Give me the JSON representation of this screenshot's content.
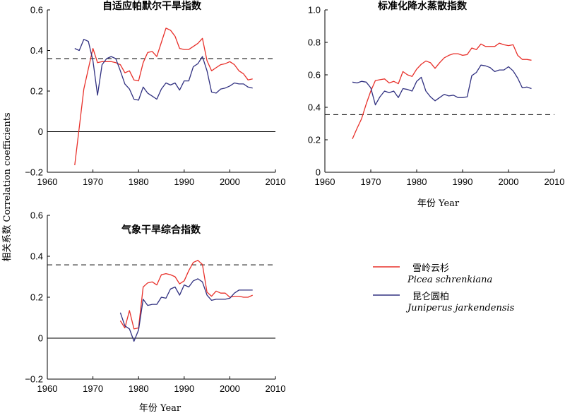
{
  "ylabel": "相关系数 Correlation coefficients",
  "legend": {
    "items": [
      {
        "name_cn": "雪岭云杉",
        "name_latin": "Picea schrenkiana",
        "color": "#e8302a"
      },
      {
        "name_cn": "昆仑圆柏",
        "name_latin": "Juniperus jarkendensis",
        "color": "#303080"
      }
    ]
  },
  "chart_data": [
    {
      "type": "line",
      "title": "自适应帕默尔干旱指数",
      "xlabel": "",
      "xlim": [
        1960,
        2010
      ],
      "ylim": [
        -0.2,
        0.6
      ],
      "xticks": [
        1960,
        1970,
        1980,
        1990,
        2000,
        2010
      ],
      "yticks": [
        -0.2,
        0,
        0.2,
        0.4,
        0.6
      ],
      "ytick_labels": [
        "−0.2",
        "0",
        "0.2",
        "0.4",
        "0.6"
      ],
      "threshold": 0.36,
      "zero_line": true,
      "series": [
        {
          "name": "雪岭云杉",
          "color": "#e8302a",
          "x": [
            1966,
            1967,
            1968,
            1969,
            1970,
            1971,
            1972,
            1973,
            1974,
            1975,
            1976,
            1977,
            1978,
            1979,
            1980,
            1981,
            1982,
            1983,
            1984,
            1985,
            1986,
            1987,
            1988,
            1989,
            1990,
            1991,
            1992,
            1993,
            1994,
            1995,
            1996,
            1997,
            1998,
            1999,
            2000,
            2001,
            2002,
            2003,
            2004,
            2005
          ],
          "y": [
            -0.165,
            0.02,
            0.21,
            0.31,
            0.41,
            0.34,
            0.345,
            0.345,
            0.345,
            0.34,
            0.33,
            0.29,
            0.3,
            0.255,
            0.25,
            0.34,
            0.39,
            0.395,
            0.37,
            0.44,
            0.51,
            0.5,
            0.47,
            0.41,
            0.405,
            0.405,
            0.42,
            0.435,
            0.46,
            0.35,
            0.3,
            0.315,
            0.33,
            0.335,
            0.345,
            0.33,
            0.3,
            0.285,
            0.255,
            0.26
          ]
        },
        {
          "name": "昆仑圆柏",
          "color": "#303080",
          "x": [
            1966,
            1967,
            1968,
            1969,
            1970,
            1971,
            1972,
            1973,
            1974,
            1975,
            1976,
            1977,
            1978,
            1979,
            1980,
            1981,
            1982,
            1983,
            1984,
            1985,
            1986,
            1987,
            1988,
            1989,
            1990,
            1991,
            1992,
            1993,
            1994,
            1995,
            1996,
            1997,
            1998,
            1999,
            2000,
            2001,
            2002,
            2003,
            2004,
            2005
          ],
          "y": [
            0.41,
            0.4,
            0.455,
            0.445,
            0.35,
            0.18,
            0.33,
            0.36,
            0.37,
            0.36,
            0.3,
            0.235,
            0.21,
            0.16,
            0.155,
            0.22,
            0.19,
            0.175,
            0.16,
            0.21,
            0.24,
            0.23,
            0.24,
            0.205,
            0.25,
            0.25,
            0.32,
            0.335,
            0.37,
            0.3,
            0.195,
            0.19,
            0.21,
            0.215,
            0.225,
            0.24,
            0.235,
            0.235,
            0.22,
            0.215
          ]
        }
      ]
    },
    {
      "type": "line",
      "title": "标准化降水蒸散指数",
      "xlabel": "年份 Year",
      "xlim": [
        1960,
        2010
      ],
      "ylim": [
        0,
        1.0
      ],
      "xticks": [
        1960,
        1970,
        1980,
        1990,
        2000,
        2010
      ],
      "yticks": [
        0,
        0.2,
        0.4,
        0.6,
        0.8,
        1.0
      ],
      "ytick_labels": [
        "0",
        "0.2",
        "0.4",
        "0.6",
        "0.8",
        "1.0"
      ],
      "threshold": 0.355,
      "zero_line": false,
      "series": [
        {
          "name": "雪岭云杉",
          "color": "#e8302a",
          "x": [
            1966,
            1967,
            1968,
            1969,
            1970,
            1971,
            1972,
            1973,
            1974,
            1975,
            1976,
            1977,
            1978,
            1979,
            1980,
            1981,
            1982,
            1983,
            1984,
            1985,
            1986,
            1987,
            1988,
            1989,
            1990,
            1991,
            1992,
            1993,
            1994,
            1995,
            1996,
            1997,
            1998,
            1999,
            2000,
            2001,
            2002,
            2003,
            2004,
            2005
          ],
          "y": [
            0.205,
            0.27,
            0.33,
            0.42,
            0.5,
            0.565,
            0.57,
            0.575,
            0.55,
            0.56,
            0.545,
            0.62,
            0.6,
            0.59,
            0.635,
            0.665,
            0.685,
            0.675,
            0.64,
            0.675,
            0.705,
            0.72,
            0.73,
            0.73,
            0.72,
            0.725,
            0.765,
            0.755,
            0.79,
            0.775,
            0.775,
            0.775,
            0.795,
            0.785,
            0.78,
            0.785,
            0.72,
            0.695,
            0.695,
            0.69
          ]
        },
        {
          "name": "昆仑圆柏",
          "color": "#303080",
          "x": [
            1966,
            1967,
            1968,
            1969,
            1970,
            1971,
            1972,
            1973,
            1974,
            1975,
            1976,
            1977,
            1978,
            1979,
            1980,
            1981,
            1982,
            1983,
            1984,
            1985,
            1986,
            1987,
            1988,
            1989,
            1990,
            1991,
            1992,
            1993,
            1994,
            1995,
            1996,
            1997,
            1998,
            1999,
            2000,
            2001,
            2002,
            2003,
            2004,
            2005
          ],
          "y": [
            0.555,
            0.55,
            0.56,
            0.555,
            0.52,
            0.415,
            0.465,
            0.5,
            0.49,
            0.5,
            0.46,
            0.515,
            0.51,
            0.5,
            0.56,
            0.585,
            0.5,
            0.465,
            0.44,
            0.46,
            0.48,
            0.47,
            0.475,
            0.46,
            0.46,
            0.465,
            0.595,
            0.615,
            0.66,
            0.655,
            0.645,
            0.62,
            0.63,
            0.63,
            0.65,
            0.625,
            0.58,
            0.52,
            0.525,
            0.515
          ]
        }
      ]
    },
    {
      "type": "line",
      "title": "气象干旱综合指数",
      "xlabel": "年份 Year",
      "xlim": [
        1960,
        2010
      ],
      "ylim": [
        -0.2,
        0.6
      ],
      "xticks": [
        1960,
        1970,
        1980,
        1990,
        2000,
        2010
      ],
      "yticks": [
        -0.2,
        0,
        0.2,
        0.4,
        0.6
      ],
      "ytick_labels": [
        "−0.2",
        "0",
        "0.2",
        "0.4",
        "0.6"
      ],
      "threshold": 0.358,
      "zero_line": true,
      "series": [
        {
          "name": "雪岭云杉",
          "color": "#e8302a",
          "x": [
            1976,
            1977,
            1978,
            1979,
            1980,
            1981,
            1982,
            1983,
            1984,
            1985,
            1986,
            1987,
            1988,
            1989,
            1990,
            1991,
            1992,
            1993,
            1994,
            1995,
            1996,
            1997,
            1998,
            1999,
            2000,
            2001,
            2002,
            2003,
            2004,
            2005
          ],
          "y": [
            0.085,
            0.05,
            0.135,
            0.045,
            0.05,
            0.25,
            0.27,
            0.275,
            0.26,
            0.31,
            0.315,
            0.31,
            0.3,
            0.265,
            0.28,
            0.33,
            0.37,
            0.38,
            0.36,
            0.225,
            0.205,
            0.23,
            0.22,
            0.22,
            0.2,
            0.205,
            0.205,
            0.2,
            0.2,
            0.21
          ]
        },
        {
          "name": "昆仑圆柏",
          "color": "#303080",
          "x": [
            1976,
            1977,
            1978,
            1979,
            1980,
            1981,
            1982,
            1983,
            1984,
            1985,
            1986,
            1987,
            1988,
            1989,
            1990,
            1991,
            1992,
            1993,
            1994,
            1995,
            1996,
            1997,
            1998,
            1999,
            2000,
            2001,
            2002,
            2003,
            2004,
            2005
          ],
          "y": [
            0.125,
            0.06,
            0.045,
            -0.015,
            0.04,
            0.19,
            0.16,
            0.165,
            0.165,
            0.2,
            0.195,
            0.24,
            0.25,
            0.21,
            0.26,
            0.25,
            0.28,
            0.29,
            0.275,
            0.21,
            0.185,
            0.19,
            0.19,
            0.19,
            0.195,
            0.22,
            0.235,
            0.235,
            0.235,
            0.235
          ]
        }
      ]
    }
  ]
}
